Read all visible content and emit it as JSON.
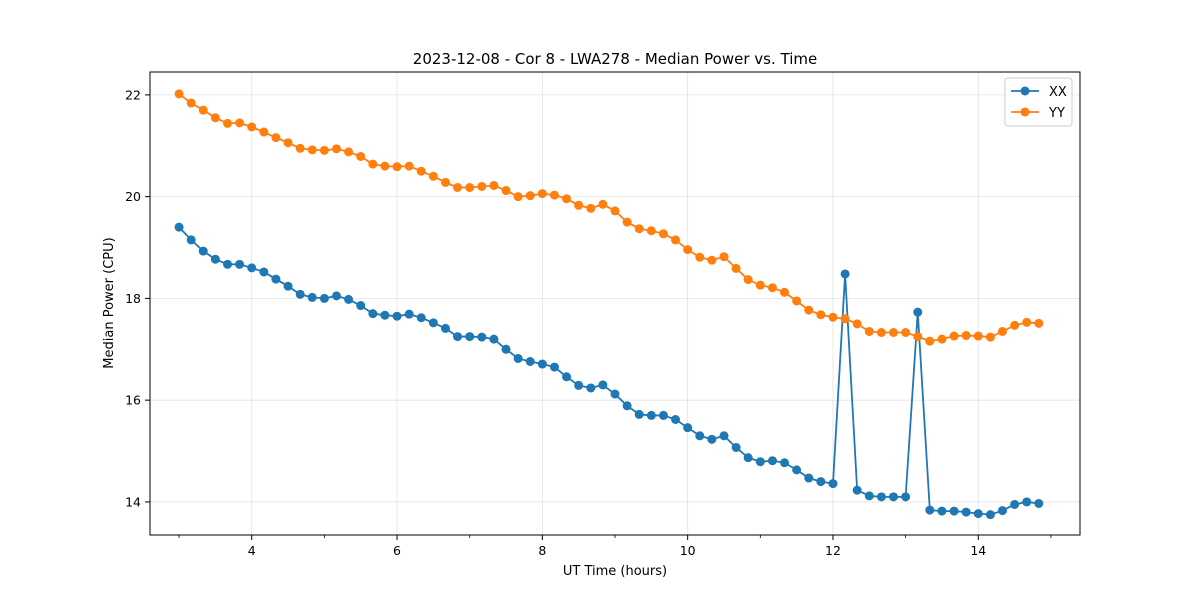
{
  "chart_data": {
    "type": "line",
    "title": "2023-12-08 - Cor 8 - LWA278 - Median Power vs. Time",
    "xlabel": "UT Time (hours)",
    "ylabel": "Median Power (CPU)",
    "xlim": [
      2.6,
      15.4
    ],
    "ylim": [
      13.35,
      22.45
    ],
    "xticks": [
      4,
      6,
      8,
      10,
      12,
      14
    ],
    "xticks_minor": [
      3,
      5,
      7,
      9,
      11,
      13,
      15
    ],
    "yticks": [
      14,
      16,
      18,
      20,
      22
    ],
    "grid": true,
    "legend_position": "upper right",
    "x": [
      3.0,
      3.167,
      3.333,
      3.5,
      3.667,
      3.833,
      4.0,
      4.167,
      4.333,
      4.5,
      4.667,
      4.833,
      5.0,
      5.167,
      5.333,
      5.5,
      5.667,
      5.833,
      6.0,
      6.167,
      6.333,
      6.5,
      6.667,
      6.833,
      7.0,
      7.167,
      7.333,
      7.5,
      7.667,
      7.833,
      8.0,
      8.167,
      8.333,
      8.5,
      8.667,
      8.833,
      9.0,
      9.167,
      9.333,
      9.5,
      9.667,
      9.833,
      10.0,
      10.167,
      10.333,
      10.5,
      10.667,
      10.833,
      11.0,
      11.167,
      11.333,
      11.5,
      11.667,
      11.833,
      12.0,
      12.167,
      12.333,
      12.5,
      12.667,
      12.833,
      13.0,
      13.167,
      13.333,
      13.5,
      13.667,
      13.833,
      14.0,
      14.167,
      14.333,
      14.5,
      14.667,
      14.833
    ],
    "series": [
      {
        "name": "XX",
        "color": "#1f77b4",
        "values": [
          19.4,
          19.15,
          18.93,
          18.77,
          18.67,
          18.67,
          18.6,
          18.52,
          18.38,
          18.24,
          18.08,
          18.02,
          18.0,
          18.05,
          17.98,
          17.86,
          17.7,
          17.67,
          17.65,
          17.69,
          17.62,
          17.52,
          17.41,
          17.25,
          17.25,
          17.24,
          17.2,
          17.0,
          16.82,
          16.76,
          16.71,
          16.65,
          16.46,
          16.29,
          16.24,
          16.3,
          16.12,
          15.89,
          15.72,
          15.7,
          15.7,
          15.62,
          15.46,
          15.3,
          15.23,
          15.3,
          15.07,
          14.87,
          14.79,
          14.81,
          14.77,
          14.63,
          14.47,
          14.4,
          14.36,
          18.48,
          14.23,
          14.12,
          14.1,
          14.1,
          14.1,
          17.73,
          13.84,
          13.82,
          13.82,
          13.8,
          13.77,
          13.75,
          13.83,
          13.95,
          14.0,
          13.97
        ]
      },
      {
        "name": "YY",
        "color": "#ff7f0e",
        "values": [
          22.02,
          21.84,
          21.7,
          21.55,
          21.44,
          21.45,
          21.37,
          21.27,
          21.16,
          21.06,
          20.95,
          20.92,
          20.91,
          20.94,
          20.88,
          20.79,
          20.64,
          20.6,
          20.59,
          20.6,
          20.5,
          20.4,
          20.28,
          20.18,
          20.18,
          20.2,
          20.22,
          20.12,
          20.0,
          20.02,
          20.06,
          20.03,
          19.96,
          19.83,
          19.77,
          19.85,
          19.72,
          19.5,
          19.37,
          19.33,
          19.27,
          19.15,
          18.96,
          18.81,
          18.75,
          18.82,
          18.59,
          18.37,
          18.26,
          18.21,
          18.12,
          17.95,
          17.77,
          17.68,
          17.63,
          17.6,
          17.5,
          17.35,
          17.33,
          17.33,
          17.33,
          17.25,
          17.16,
          17.2,
          17.26,
          17.27,
          17.26,
          17.24,
          17.35,
          17.47,
          17.53,
          17.51
        ]
      }
    ]
  }
}
